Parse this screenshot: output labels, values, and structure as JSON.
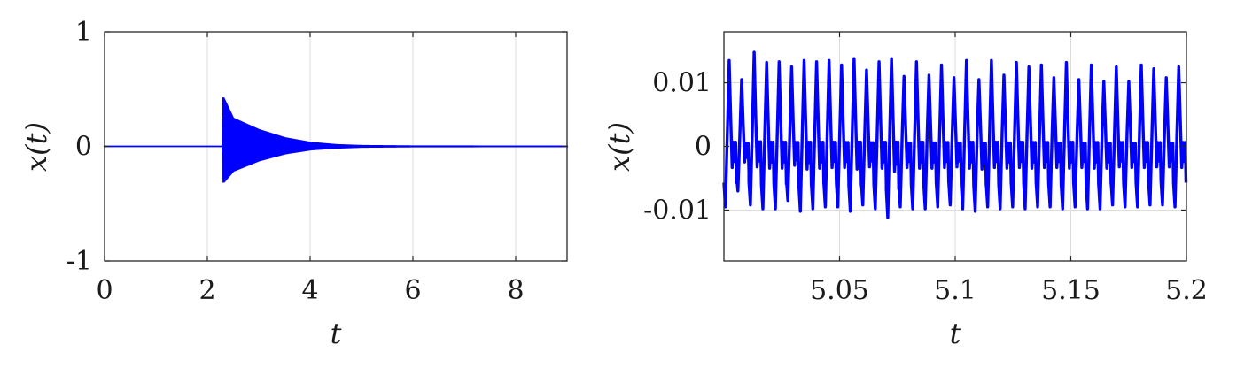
{
  "chart_data": [
    {
      "type": "line",
      "xlabel": "t",
      "ylabel": "x(t)",
      "xlim": [
        0,
        9
      ],
      "ylim": [
        -1,
        1
      ],
      "xticks": [
        0,
        2,
        4,
        6,
        8
      ],
      "xtick_labels": [
        "0",
        "2",
        "4",
        "6",
        "8"
      ],
      "yticks": [
        -1,
        0,
        1
      ],
      "ytick_labels": [
        "-1",
        "0",
        "1"
      ],
      "grid": true,
      "line_color": "#0000ff",
      "series": [
        {
          "x": [
            0,
            2.3,
            2.31,
            2.5,
            3.0,
            3.5,
            4.0,
            4.5,
            5.0,
            6.0,
            9.0
          ],
          "y_upper": [
            0.005,
            0.005,
            0.43,
            0.25,
            0.15,
            0.08,
            0.04,
            0.02,
            0.012,
            0.008,
            0.006
          ],
          "y_lower": [
            -0.005,
            -0.005,
            -0.32,
            -0.22,
            -0.13,
            -0.07,
            -0.035,
            -0.02,
            -0.012,
            -0.008,
            -0.006
          ]
        }
      ]
    },
    {
      "type": "line",
      "xlabel": "t",
      "ylabel": "x(t)",
      "xlim": [
        5.0,
        5.2
      ],
      "ylim": [
        -0.018,
        0.018
      ],
      "xticks": [
        5.05,
        5.1,
        5.15,
        5.2
      ],
      "xtick_labels": [
        "5.05",
        "5.1",
        "5.15",
        "5.2"
      ],
      "yticks": [
        -0.01,
        0,
        0.01
      ],
      "ytick_labels": [
        "-0.01",
        "0",
        "0.01"
      ],
      "grid": true,
      "line_color": "#0000ff",
      "series": [
        {
          "period": 0.0054,
          "peak_max": [
            0.0135,
            0.0105,
            0.0148,
            0.0132,
            0.0133,
            0.0125,
            0.0135,
            0.0133,
            0.0135,
            0.0128,
            0.0138,
            0.012,
            0.0133,
            0.0138,
            0.011,
            0.0133,
            0.0112,
            0.0128,
            0.0108,
            0.0135,
            0.0105,
            0.0135,
            0.0112,
            0.0132,
            0.0125,
            0.0128,
            0.0108,
            0.0132,
            0.0105,
            0.0128,
            0.0102,
            0.0125,
            0.0102,
            0.0128,
            0.0122,
            0.0108,
            0.0125
          ],
          "trough_min": [
            -0.0095,
            -0.007,
            -0.0092,
            -0.0098,
            -0.0098,
            -0.0085,
            -0.0102,
            -0.0098,
            -0.0095,
            -0.0095,
            -0.0102,
            -0.0092,
            -0.0098,
            -0.0112,
            -0.0095,
            -0.0098,
            -0.0098,
            -0.0095,
            -0.0092,
            -0.0098,
            -0.0102,
            -0.0095,
            -0.0098,
            -0.0095,
            -0.0098,
            -0.0095,
            -0.0095,
            -0.0098,
            -0.0095,
            -0.0098,
            -0.0098,
            -0.0092,
            -0.0095,
            -0.0095,
            -0.0092,
            -0.0092,
            -0.0095
          ]
        }
      ]
    }
  ]
}
